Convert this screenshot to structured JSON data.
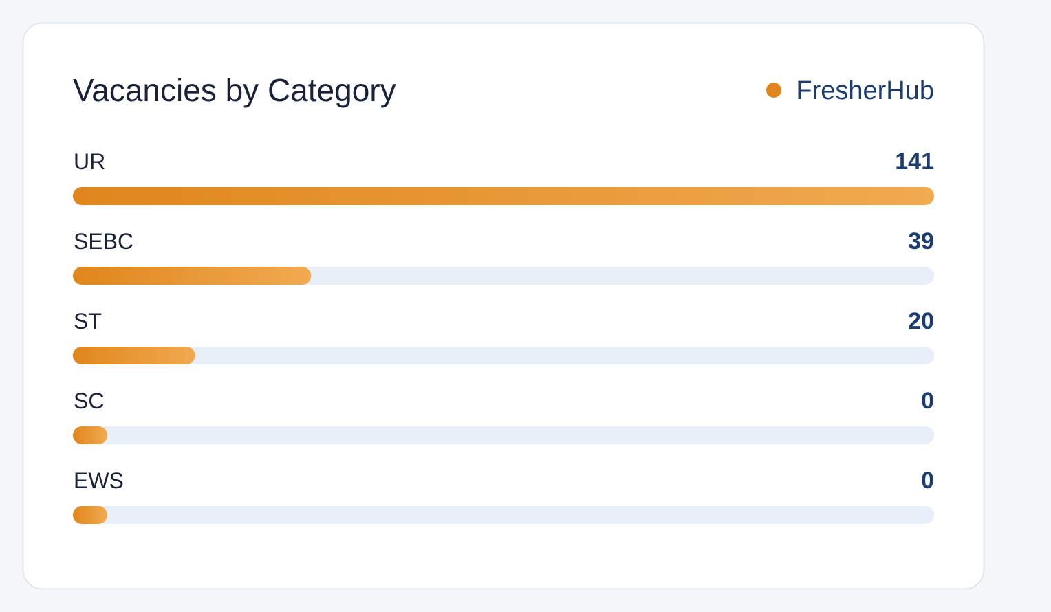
{
  "chart_data": {
    "type": "hbar",
    "title": "Vacancies by Category",
    "categories": [
      "UR",
      "SEBC",
      "ST",
      "SC",
      "EWS"
    ],
    "series": [
      {
        "name": "FresherHub",
        "color": "#e0861c",
        "values": [
          141,
          39,
          20,
          0,
          0
        ]
      }
    ],
    "legend": "top-right"
  }
}
